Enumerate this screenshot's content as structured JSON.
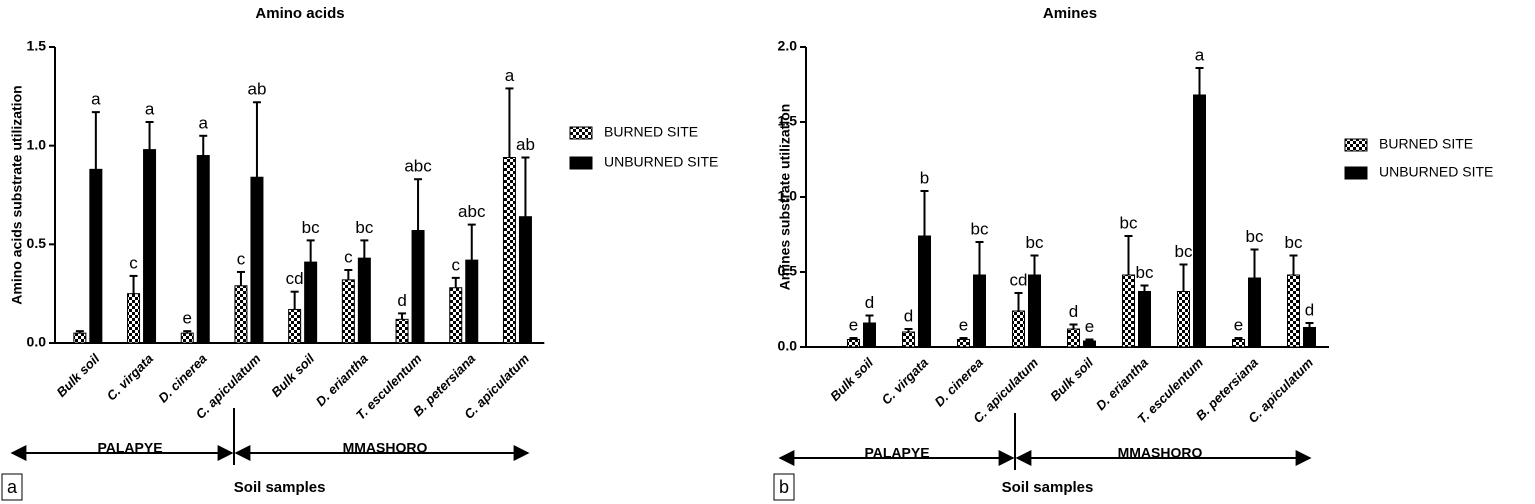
{
  "chart_data": [
    {
      "type": "bar",
      "title": "Amino acids",
      "y_label": "Amino acids substrate utilization",
      "x_label": "Soil samples",
      "panel": "a",
      "categories": [
        "Bulk soil",
        "C. virgata",
        "D. cinerea",
        "C. apiculatum",
        "Bulk soil",
        "D. eriantha",
        "T. esculentum",
        "B. petersiana",
        "C. apiculatum"
      ],
      "groups": [
        "PALAPYE",
        "MMASHORO"
      ],
      "ylim": [
        0,
        1.5
      ],
      "yticks": [
        {
          "value": 0,
          "label": "0.0"
        },
        0.5,
        {
          "value": 1,
          "label": "1.0"
        },
        1.5
      ],
      "series": [
        {
          "name": "BURNED SITE",
          "color": "#000000",
          "hatch": true,
          "values": [
            0.05,
            0.25,
            0.05,
            0.29,
            0.17,
            0.32,
            0.12,
            0.28,
            0.94
          ],
          "errors": [
            0.01,
            0.09,
            0.01,
            0.07,
            0.09,
            0.05,
            0.03,
            0.05,
            0.35
          ],
          "labels": [
            null,
            "c",
            "e",
            "c",
            "cd",
            "c",
            "d",
            "c",
            "a"
          ]
        },
        {
          "name": "UNBURNED SITE",
          "color": "#000000",
          "hatch": false,
          "values": [
            0.88,
            0.98,
            0.95,
            0.84,
            0.41,
            0.43,
            0.57,
            0.42,
            0.64
          ],
          "errors": [
            0.29,
            0.14,
            0.1,
            0.38,
            0.11,
            0.09,
            0.26,
            0.18,
            0.3
          ],
          "labels": [
            "a",
            "a",
            "a",
            "ab",
            "bc",
            "bc",
            "abc",
            "abc",
            "ab"
          ]
        }
      ]
    },
    {
      "type": "bar",
      "title": "Amines",
      "y_label": "Amines substrate utilization",
      "x_label": "Soil samples",
      "panel": "b",
      "categories": [
        "Bulk soil",
        "C. virgata",
        "D. cinerea",
        "C. apiculatum",
        "Bulk soil",
        "D. eriantha",
        "T. esculentum",
        "B. petersiana",
        "C. apiculatum"
      ],
      "groups": [
        "PALAPYE",
        "MMASHORO"
      ],
      "ylim": [
        0,
        2
      ],
      "yticks": [
        {
          "value": 0,
          "label": "0.0"
        },
        0.5,
        {
          "value": 1,
          "label": "1.0"
        },
        1.5,
        {
          "value": 2,
          "label": "2.0"
        }
      ],
      "series": [
        {
          "name": "BURNED SITE",
          "color": "#000000",
          "hatch": true,
          "values": [
            0.05,
            0.1,
            0.05,
            0.24,
            0.12,
            0.48,
            0.37,
            0.05,
            0.48
          ],
          "errors": [
            0.01,
            0.02,
            0.01,
            0.12,
            0.03,
            0.26,
            0.18,
            0.01,
            0.13
          ],
          "labels": [
            "e",
            "d",
            "e",
            "cd",
            "d",
            "bc",
            "bc",
            "e",
            "bc"
          ]
        },
        {
          "name": "UNBURNED SITE",
          "color": "#000000",
          "hatch": false,
          "values": [
            0.16,
            0.74,
            0.48,
            0.48,
            0.04,
            0.37,
            1.68,
            0.46,
            0.13
          ],
          "errors": [
            0.05,
            0.3,
            0.22,
            0.13,
            0.01,
            0.04,
            0.18,
            0.19,
            0.03
          ],
          "labels": [
            "d",
            "b",
            "bc",
            "bc",
            "e",
            "bc",
            "a",
            "bc",
            "d"
          ]
        }
      ]
    }
  ]
}
